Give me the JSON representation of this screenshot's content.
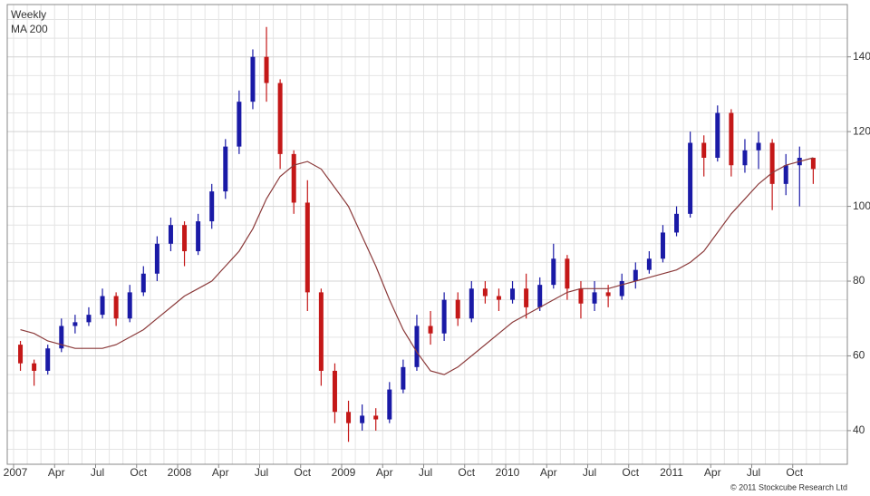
{
  "chart_data": {
    "type": "candlestick",
    "name": "Weekly",
    "categories": [
      "2007",
      null,
      null,
      "Apr",
      null,
      null,
      "Jul",
      null,
      null,
      "Oct",
      null,
      null,
      "2008",
      null,
      null,
      "Apr",
      null,
      null,
      "Jul",
      null,
      null,
      "Oct",
      null,
      null,
      "2009",
      null,
      null,
      "Apr",
      null,
      null,
      "Jul",
      null,
      null,
      "Oct",
      null,
      null,
      "2010",
      null,
      null,
      "Apr",
      null,
      null,
      "Jul",
      null,
      null,
      "Oct",
      null,
      null,
      "2011",
      null,
      null,
      "Apr",
      null,
      null,
      "Jul",
      null,
      null,
      "Oct",
      null,
      null
    ],
    "open": [
      63,
      58,
      56,
      62,
      68,
      69,
      71,
      76,
      70,
      77,
      82,
      90,
      95,
      88,
      96,
      104,
      116,
      128,
      140,
      133,
      114,
      101,
      77,
      56,
      45,
      42,
      44,
      43,
      51,
      57,
      68,
      66,
      75,
      70,
      78,
      76,
      75,
      78,
      73,
      79,
      86,
      78,
      74,
      77,
      76,
      80,
      83,
      86,
      93,
      98,
      117,
      113,
      125,
      111,
      115,
      117,
      106,
      111,
      113,
      null
    ],
    "high": [
      64,
      59,
      63,
      70,
      71,
      73,
      78,
      77,
      79,
      84,
      92,
      97,
      96,
      98,
      106,
      118,
      131,
      142,
      148,
      134,
      115,
      107,
      78,
      58,
      48,
      47,
      46,
      53,
      59,
      71,
      72,
      77,
      77,
      80,
      80,
      78,
      80,
      82,
      81,
      90,
      87,
      80,
      80,
      79,
      82,
      85,
      88,
      95,
      100,
      120,
      119,
      127,
      126,
      118,
      120,
      118,
      114,
      116,
      113,
      null
    ],
    "low": [
      56,
      52,
      55,
      61,
      66,
      68,
      70,
      68,
      69,
      76,
      80,
      88,
      84,
      87,
      94,
      102,
      114,
      126,
      128,
      110,
      98,
      72,
      52,
      42,
      37,
      40,
      40,
      42,
      50,
      56,
      63,
      64,
      68,
      69,
      74,
      72,
      74,
      70,
      72,
      78,
      75,
      70,
      72,
      73,
      75,
      78,
      82,
      85,
      92,
      97,
      108,
      112,
      108,
      109,
      110,
      99,
      103,
      100,
      106,
      null
    ],
    "close": [
      58,
      56,
      62,
      68,
      69,
      71,
      76,
      70,
      77,
      82,
      90,
      95,
      88,
      96,
      104,
      116,
      128,
      140,
      133,
      114,
      101,
      77,
      56,
      45,
      42,
      44,
      43,
      51,
      57,
      68,
      66,
      75,
      70,
      78,
      76,
      75,
      78,
      73,
      79,
      86,
      78,
      74,
      77,
      76,
      80,
      83,
      86,
      93,
      98,
      117,
      113,
      125,
      111,
      115,
      117,
      106,
      111,
      113,
      110,
      null
    ],
    "up_color": "#1a1aa6",
    "down_color": "#c41818",
    "series": [
      {
        "name": "MA 200",
        "color": "#8b3a3a",
        "values": [
          67,
          66,
          64,
          63,
          62,
          62,
          62,
          63,
          65,
          67,
          70,
          73,
          76,
          78,
          80,
          84,
          88,
          94,
          102,
          108,
          111,
          112,
          110,
          105,
          100,
          92,
          84,
          75,
          67,
          61,
          56,
          55,
          57,
          60,
          63,
          66,
          69,
          71,
          73,
          75,
          77,
          78,
          78,
          78,
          79,
          80,
          81,
          82,
          83,
          85,
          88,
          93,
          98,
          102,
          106,
          109,
          111,
          112,
          113,
          null
        ]
      }
    ],
    "ylim": [
      31,
      154
    ],
    "yticks": [
      40,
      60,
      80,
      100,
      120,
      140
    ],
    "y_minor_ticks": [
      35,
      45,
      50,
      55,
      65,
      70,
      75,
      85,
      90,
      95,
      105,
      110,
      115,
      125,
      130,
      135,
      145,
      150
    ],
    "grid": true,
    "copyright": "© 2011 Stockcube Research Ltd"
  }
}
